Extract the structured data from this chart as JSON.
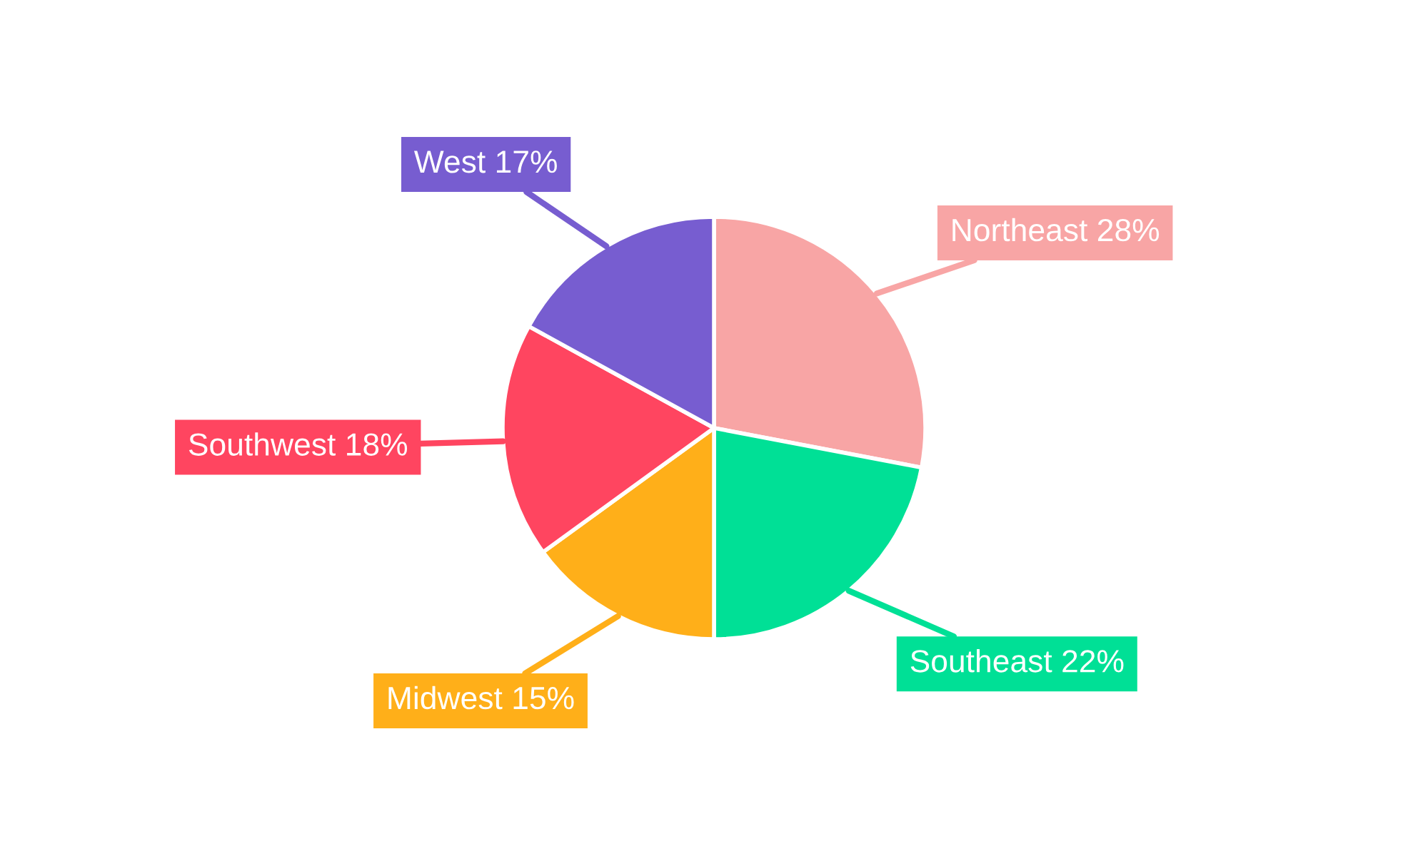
{
  "chart_data": {
    "type": "pie",
    "categories": [
      "Northeast",
      "Southeast",
      "Midwest",
      "Southwest",
      "West"
    ],
    "values": [
      28,
      22,
      15,
      18,
      17
    ],
    "value_labels": [
      "28%",
      "22%",
      "15%",
      "18%",
      "17%"
    ],
    "colors": [
      "#f8a5a5",
      "#00e096",
      "#ffaf19",
      "#ff4560",
      "#775dd0"
    ],
    "legend": false
  }
}
